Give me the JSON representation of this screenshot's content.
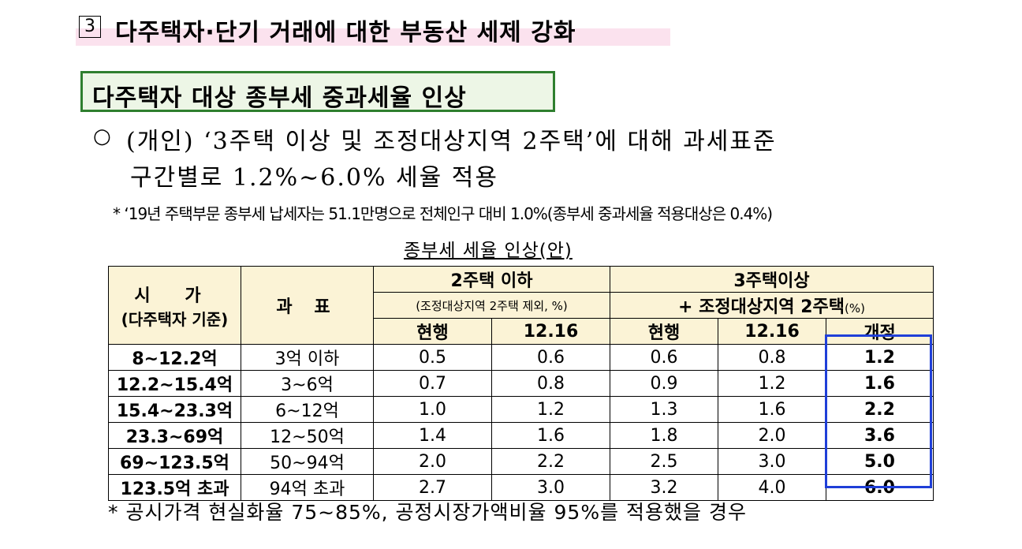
{
  "section": {
    "number": "3",
    "title": "다주택자·단기 거래에 대한 부동산 세제 강화",
    "highlight_color": "#fbe2ee"
  },
  "subtitle": {
    "text": "다주택자 대상 종부세 중과세율 인상",
    "border_color": "#2f7f2f"
  },
  "bullet": {
    "mark": "○",
    "line1": "(개인) ‘3주택 이상 및 조정대상지역 2주택’에 대해 과세표준",
    "line2": "구간별로 1.2%∼6.0% 세율 적용"
  },
  "footnote_top": "* ‘19년 주택부문 종부세 납세자는 51.1만명으로 전체인구 대비 1.0%(종부세 중과세율 적용대상은 0.4%)",
  "table": {
    "caption": "종부세 세율 인상(안)",
    "header": {
      "price_label": "시 가",
      "price_sub": "(다주택자 기준)",
      "tax_base": "과 표",
      "group1_title": "2주택 이하",
      "group1_sub": "(조정대상지역 2주택 제외, %)",
      "group2_title": "3주택이상",
      "group2_line2": "+ 조정대상지역 2주택",
      "group2_unit": "(%)",
      "current": "현행",
      "dec16": "12.16",
      "revised": "개정"
    },
    "rows": [
      {
        "price": "8~12.2억",
        "base": "3억 이하",
        "g1_current": "0.5",
        "g1_1216": "0.6",
        "g2_current": "0.6",
        "g2_1216": "0.8",
        "revised": "1.2"
      },
      {
        "price": "12.2~15.4억",
        "base": "3~6억",
        "g1_current": "0.7",
        "g1_1216": "0.8",
        "g2_current": "0.9",
        "g2_1216": "1.2",
        "revised": "1.6"
      },
      {
        "price": "15.4~23.3억",
        "base": "6~12억",
        "g1_current": "1.0",
        "g1_1216": "1.2",
        "g2_current": "1.3",
        "g2_1216": "1.6",
        "revised": "2.2"
      },
      {
        "price": "23.3~69억",
        "base": "12~50억",
        "g1_current": "1.4",
        "g1_1216": "1.6",
        "g2_current": "1.8",
        "g2_1216": "2.0",
        "revised": "3.6"
      },
      {
        "price": "69~123.5억",
        "base": "50~94억",
        "g1_current": "2.0",
        "g1_1216": "2.2",
        "g2_current": "2.5",
        "g2_1216": "3.0",
        "revised": "5.0"
      },
      {
        "price": "123.5억 초과",
        "base": "94억 초과",
        "g1_current": "2.7",
        "g1_1216": "3.0",
        "g2_current": "3.2",
        "g2_1216": "4.0",
        "revised": "6.0"
      }
    ],
    "header_bg": "#fbf3d6",
    "highlight_color": "#1f3fd8"
  },
  "footnote_bottom": "* 공시가격 현실화율 75~85%, 공정시장가액비율 95%를 적용했을 경우"
}
